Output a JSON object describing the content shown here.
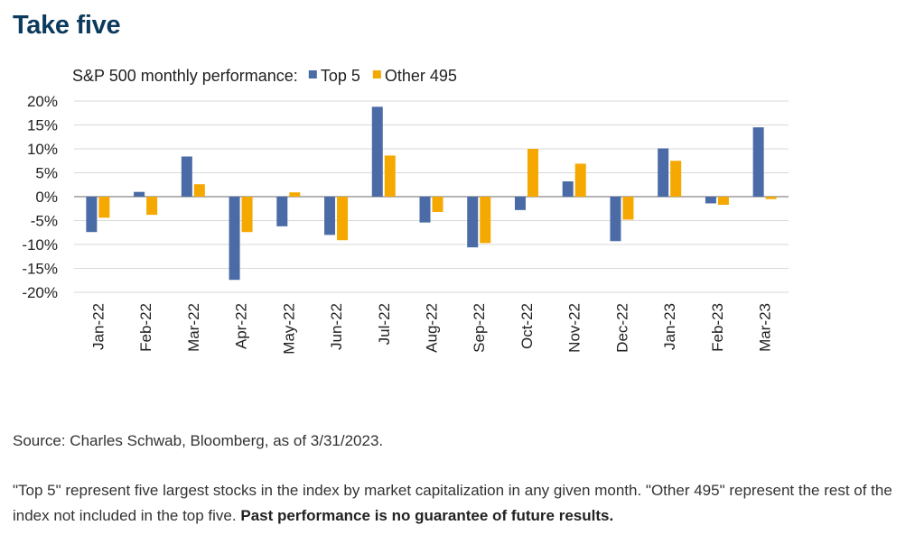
{
  "page": {
    "title": "Take five",
    "source": "Source: Charles Schwab, Bloomberg, as of 3/31/2023.",
    "note_text": "\"Top 5\" represent five largest stocks in the index by market capitalization in any given month. \"Other 495\" represent the rest of the index not included in the top five.",
    "note_bold": "Past performance is no guarantee of future results."
  },
  "chart_data": {
    "type": "bar",
    "title": "S&P 500 monthly performance:",
    "legend_position": "top",
    "categories": [
      "Jan-22",
      "Feb-22",
      "Mar-22",
      "Apr-22",
      "May-22",
      "Jun-22",
      "Jul-22",
      "Aug-22",
      "Sep-22",
      "Oct-22",
      "Nov-22",
      "Dec-22",
      "Jan-23",
      "Feb-23",
      "Mar-23"
    ],
    "series": [
      {
        "name": "Top 5",
        "color": "#4a6ba5",
        "values": [
          -7.4,
          1.0,
          8.4,
          -17.4,
          -6.2,
          -8.0,
          18.8,
          -5.4,
          -10.6,
          -2.8,
          3.2,
          -9.3,
          10.1,
          -1.4,
          14.5
        ]
      },
      {
        "name": "Other 495",
        "color": "#f5a800",
        "values": [
          -4.4,
          -3.8,
          2.6,
          -7.4,
          0.9,
          -9.1,
          8.6,
          -3.2,
          -9.7,
          10.0,
          6.9,
          -4.8,
          7.5,
          -1.7,
          -0.5
        ]
      }
    ],
    "ylim": [
      -20,
      20
    ],
    "yticks": [
      20,
      15,
      10,
      5,
      0,
      -5,
      -10,
      -15,
      -20
    ],
    "ytick_labels": [
      "20%",
      "15%",
      "10%",
      "5%",
      "0%",
      "-5%",
      "-10%",
      "-15%",
      "-20%"
    ],
    "xlabel": "",
    "ylabel": "",
    "grid": true,
    "colors": {
      "grid": "#d9d9d9",
      "axis": "#888888"
    }
  }
}
